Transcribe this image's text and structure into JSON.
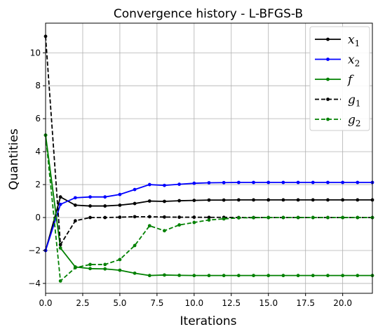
{
  "chart_data": {
    "type": "line",
    "title": "Convergence history - L-BFGS-B",
    "xlabel": "Iterations",
    "ylabel": "Quantities",
    "xlim": [
      0,
      22
    ],
    "ylim": [
      -4.6,
      11.8
    ],
    "xticks": [
      0.0,
      2.5,
      5.0,
      7.5,
      10.0,
      12.5,
      15.0,
      17.5,
      20.0
    ],
    "xtick_labels": [
      "0.0",
      "2.5",
      "5.0",
      "7.5",
      "10.0",
      "12.5",
      "15.0",
      "17.5",
      "20.0"
    ],
    "yticks": [
      -4,
      -2,
      0,
      2,
      4,
      6,
      8,
      10
    ],
    "ytick_labels": [
      "−4",
      "−2",
      "0",
      "2",
      "4",
      "6",
      "8",
      "10"
    ],
    "grid": true,
    "legend_position": "top-right",
    "x": [
      0,
      1,
      2,
      3,
      4,
      5,
      6,
      7,
      8,
      9,
      10,
      11,
      12,
      13,
      14,
      15,
      16,
      17,
      18,
      19,
      20,
      21,
      22
    ],
    "series": [
      {
        "name": "x1",
        "color": "#000000",
        "dash": "solid",
        "values": [
          -2.0,
          1.25,
          0.75,
          0.7,
          0.7,
          0.75,
          0.85,
          1.0,
          0.98,
          1.02,
          1.04,
          1.06,
          1.06,
          1.07,
          1.07,
          1.07,
          1.07,
          1.07,
          1.07,
          1.07,
          1.07,
          1.07,
          1.07
        ]
      },
      {
        "name": "x2",
        "color": "#0000ff",
        "dash": "solid",
        "values": [
          -2.0,
          0.8,
          1.2,
          1.25,
          1.25,
          1.4,
          1.7,
          2.0,
          1.95,
          2.02,
          2.08,
          2.11,
          2.12,
          2.13,
          2.13,
          2.13,
          2.13,
          2.13,
          2.13,
          2.13,
          2.13,
          2.13,
          2.13
        ]
      },
      {
        "name": "f",
        "color": "#008000",
        "dash": "solid",
        "values": [
          5.0,
          -1.85,
          -3.0,
          -3.1,
          -3.12,
          -3.2,
          -3.38,
          -3.52,
          -3.49,
          -3.51,
          -3.52,
          -3.52,
          -3.52,
          -3.52,
          -3.52,
          -3.52,
          -3.52,
          -3.52,
          -3.52,
          -3.52,
          -3.52,
          -3.52,
          -3.52
        ]
      },
      {
        "name": "g1",
        "color": "#000000",
        "dash": "dashed",
        "values": [
          11.0,
          -1.65,
          -0.2,
          0.0,
          0.0,
          0.02,
          0.05,
          0.05,
          0.03,
          0.02,
          0.02,
          0.01,
          0.01,
          0.0,
          0.0,
          0.0,
          0.0,
          0.0,
          0.0,
          0.0,
          0.0,
          0.0,
          0.0
        ]
      },
      {
        "name": "g2",
        "color": "#008000",
        "dash": "dashed",
        "values": [
          5.0,
          -3.85,
          -3.05,
          -2.85,
          -2.85,
          -2.55,
          -1.7,
          -0.5,
          -0.8,
          -0.45,
          -0.3,
          -0.15,
          -0.08,
          -0.02,
          -0.01,
          0.0,
          0.0,
          0.0,
          0.0,
          0.0,
          0.0,
          0.0,
          0.0
        ]
      }
    ]
  }
}
